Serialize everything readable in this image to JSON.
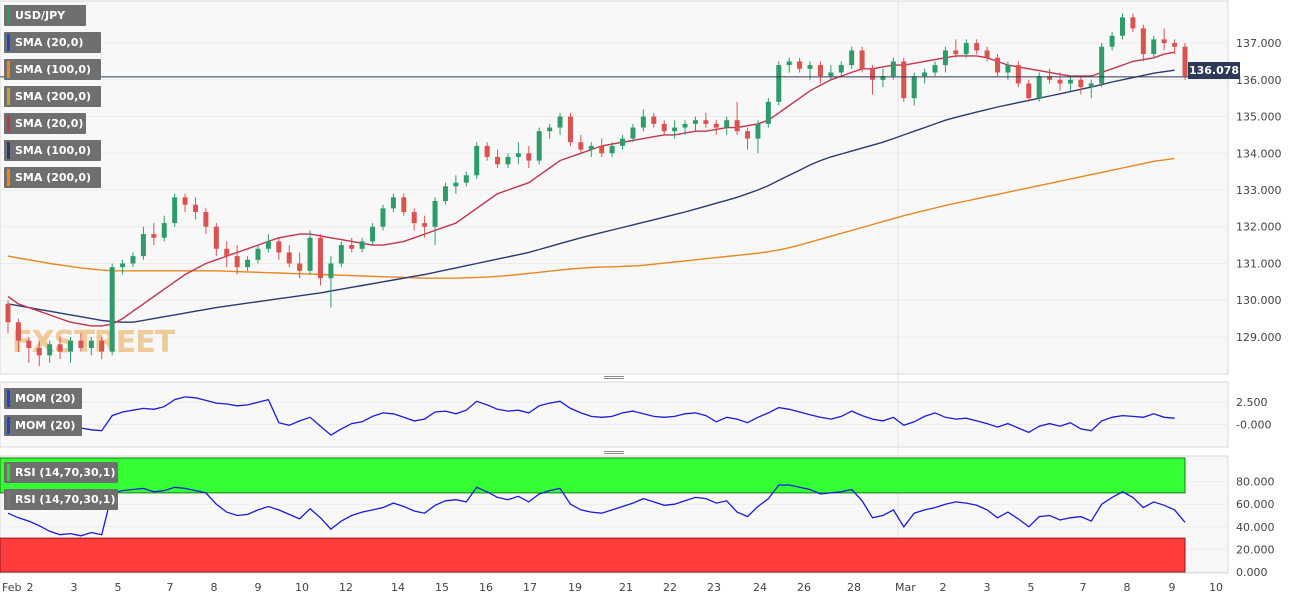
{
  "instrument": "USD/JPY",
  "current_price": "136.078",
  "watermark": "FXSTREET",
  "colors": {
    "up": "#2e9c6a",
    "down": "#d9534f",
    "sma20": "#c2334d",
    "sma100": "#2c3a6e",
    "sma200": "#e8871e",
    "mom": "#1a1adb",
    "rsi": "#1a1adb",
    "rsi_overbought_zone": "#33ff33",
    "rsi_oversold_zone": "#ff3b3b",
    "price_line": "#2c3a57"
  },
  "indicator_labels": [
    {
      "text": "SMA (20,0)",
      "color": "#2244cc"
    },
    {
      "text": "SMA (100,0)",
      "color": "#e8871e"
    },
    {
      "text": "SMA (200,0)",
      "color": "#c2a13a"
    },
    {
      "text": "SMA (20,0)",
      "color": "#c2334d"
    },
    {
      "text": "SMA (100,0)",
      "color": "#2c3a6e"
    },
    {
      "text": "SMA (200,0)",
      "color": "#e8871e"
    }
  ],
  "mom_labels": [
    {
      "text": "MOM (20)",
      "color": "#2244cc"
    },
    {
      "text": "MOM (20)",
      "color": "#2244cc"
    }
  ],
  "rsi_labels": [
    {
      "text": "RSI (14,70,30,1)",
      "color": "#2d2"
    },
    {
      "text": "RSI (14,70,30,1)",
      "color": "#777"
    }
  ],
  "chart_data": {
    "type": "candlestick",
    "x_ticks": [
      "Feb",
      "2",
      "3",
      "5",
      "7",
      "8",
      "9",
      "10",
      "12",
      "14",
      "15",
      "16",
      "17",
      "19",
      "21",
      "22",
      "23",
      "24",
      "26",
      "28",
      "Mar",
      "2",
      "3",
      "5",
      "7",
      "8",
      "9",
      "10"
    ],
    "price_axis": {
      "ticks": [
        129.0,
        130.0,
        131.0,
        132.0,
        133.0,
        134.0,
        135.0,
        136.0,
        137.0
      ],
      "ylim": [
        128.1,
        137.9
      ]
    },
    "mom_axis": {
      "ticks": [
        2.5,
        0.0
      ],
      "tick_labels": [
        "2.500",
        "-0.000"
      ],
      "ylim": [
        -2.2,
        4.1
      ]
    },
    "rsi_axis": {
      "ticks": [
        0,
        20,
        40,
        60,
        80
      ],
      "tick_labels": [
        "0.000",
        "20.000",
        "40.000",
        "60.000",
        "80.000"
      ],
      "ylim": [
        0,
        100
      ],
      "overbought": 70,
      "oversold": 30
    },
    "ohlc": [
      [
        129.9,
        130.0,
        129.1,
        129.4
      ],
      [
        129.4,
        129.5,
        128.6,
        128.9
      ],
      [
        128.9,
        129.0,
        128.3,
        128.7
      ],
      [
        128.7,
        128.9,
        128.2,
        128.5
      ],
      [
        128.5,
        128.9,
        128.3,
        128.8
      ],
      [
        128.8,
        129.0,
        128.4,
        128.6
      ],
      [
        128.6,
        129.0,
        128.3,
        128.9
      ],
      [
        128.9,
        129.1,
        128.6,
        128.7
      ],
      [
        128.7,
        129.0,
        128.5,
        128.9
      ],
      [
        128.9,
        129.0,
        128.4,
        128.6
      ],
      [
        128.6,
        131.0,
        128.5,
        130.9
      ],
      [
        130.9,
        131.1,
        130.7,
        131.0
      ],
      [
        131.0,
        131.3,
        130.9,
        131.2
      ],
      [
        131.2,
        132.0,
        131.1,
        131.8
      ],
      [
        131.8,
        132.1,
        131.5,
        131.7
      ],
      [
        131.7,
        132.3,
        131.6,
        132.1
      ],
      [
        132.1,
        132.9,
        132.0,
        132.8
      ],
      [
        132.8,
        132.9,
        132.4,
        132.6
      ],
      [
        132.6,
        132.8,
        132.2,
        132.4
      ],
      [
        132.4,
        132.5,
        131.8,
        132.0
      ],
      [
        132.0,
        132.1,
        131.2,
        131.4
      ],
      [
        131.4,
        131.6,
        130.9,
        131.2
      ],
      [
        131.2,
        131.5,
        130.7,
        130.9
      ],
      [
        130.9,
        131.2,
        130.8,
        131.1
      ],
      [
        131.1,
        131.5,
        131.0,
        131.4
      ],
      [
        131.4,
        131.8,
        131.3,
        131.6
      ],
      [
        131.6,
        131.7,
        131.1,
        131.3
      ],
      [
        131.3,
        131.5,
        130.9,
        131.0
      ],
      [
        131.0,
        131.3,
        130.6,
        130.8
      ],
      [
        130.8,
        131.9,
        130.7,
        131.7
      ],
      [
        131.7,
        131.8,
        130.4,
        130.6
      ],
      [
        130.6,
        131.2,
        129.8,
        131.0
      ],
      [
        131.0,
        131.6,
        130.9,
        131.5
      ],
      [
        131.5,
        131.7,
        131.3,
        131.4
      ],
      [
        131.4,
        131.7,
        131.3,
        131.6
      ],
      [
        131.6,
        132.1,
        131.5,
        132.0
      ],
      [
        132.0,
        132.6,
        131.9,
        132.5
      ],
      [
        132.5,
        132.9,
        132.4,
        132.8
      ],
      [
        132.8,
        132.9,
        132.3,
        132.4
      ],
      [
        132.4,
        132.5,
        131.9,
        132.1
      ],
      [
        132.1,
        132.3,
        131.7,
        132.0
      ],
      [
        132.0,
        132.8,
        131.5,
        132.7
      ],
      [
        132.7,
        133.2,
        132.6,
        133.1
      ],
      [
        133.1,
        133.4,
        132.9,
        133.2
      ],
      [
        133.2,
        133.5,
        133.1,
        133.4
      ],
      [
        133.4,
        134.3,
        133.3,
        134.2
      ],
      [
        134.2,
        134.3,
        133.8,
        133.9
      ],
      [
        133.9,
        134.1,
        133.6,
        133.7
      ],
      [
        133.7,
        134.0,
        133.6,
        133.9
      ],
      [
        133.9,
        134.3,
        133.7,
        134.0
      ],
      [
        134.0,
        134.2,
        133.6,
        133.8
      ],
      [
        133.8,
        134.7,
        133.7,
        134.6
      ],
      [
        134.6,
        134.8,
        134.4,
        134.7
      ],
      [
        134.7,
        135.1,
        134.5,
        135.0
      ],
      [
        135.0,
        135.1,
        134.2,
        134.3
      ],
      [
        134.3,
        134.5,
        134.0,
        134.1
      ],
      [
        134.1,
        134.3,
        133.9,
        134.2
      ],
      [
        134.2,
        134.4,
        133.9,
        134.0
      ],
      [
        134.0,
        134.3,
        133.9,
        134.2
      ],
      [
        134.2,
        134.5,
        134.1,
        134.4
      ],
      [
        134.4,
        134.8,
        134.3,
        134.7
      ],
      [
        134.7,
        135.2,
        134.6,
        135.0
      ],
      [
        135.0,
        135.1,
        134.7,
        134.8
      ],
      [
        134.8,
        134.9,
        134.5,
        134.6
      ],
      [
        134.6,
        134.9,
        134.4,
        134.7
      ],
      [
        134.7,
        134.9,
        134.5,
        134.8
      ],
      [
        134.8,
        135.0,
        134.6,
        134.9
      ],
      [
        134.9,
        135.1,
        134.7,
        134.8
      ],
      [
        134.8,
        134.9,
        134.5,
        134.7
      ],
      [
        134.7,
        135.0,
        134.5,
        134.9
      ],
      [
        134.9,
        135.4,
        134.5,
        134.6
      ],
      [
        134.6,
        134.7,
        134.1,
        134.4
      ],
      [
        134.4,
        134.9,
        134.0,
        134.8
      ],
      [
        134.8,
        135.5,
        134.7,
        135.4
      ],
      [
        135.4,
        136.5,
        135.3,
        136.4
      ],
      [
        136.4,
        136.6,
        136.2,
        136.5
      ],
      [
        136.5,
        136.6,
        136.2,
        136.3
      ],
      [
        136.3,
        136.5,
        136.0,
        136.4
      ],
      [
        136.4,
        136.5,
        135.9,
        136.1
      ],
      [
        136.1,
        136.4,
        136.0,
        136.2
      ],
      [
        136.2,
        136.5,
        136.1,
        136.4
      ],
      [
        136.4,
        136.9,
        136.3,
        136.8
      ],
      [
        136.8,
        136.9,
        136.2,
        136.3
      ],
      [
        136.3,
        136.4,
        135.6,
        136.0
      ],
      [
        136.0,
        136.3,
        135.8,
        136.1
      ],
      [
        136.1,
        136.6,
        136.0,
        136.5
      ],
      [
        136.5,
        136.6,
        135.4,
        135.5
      ],
      [
        135.5,
        136.2,
        135.3,
        136.1
      ],
      [
        136.1,
        136.3,
        135.9,
        136.2
      ],
      [
        136.2,
        136.5,
        136.1,
        136.4
      ],
      [
        136.4,
        136.9,
        136.2,
        136.8
      ],
      [
        136.8,
        137.1,
        136.6,
        136.7
      ],
      [
        136.7,
        137.1,
        136.6,
        137.0
      ],
      [
        137.0,
        137.1,
        136.7,
        136.8
      ],
      [
        136.8,
        136.9,
        136.5,
        136.6
      ],
      [
        136.6,
        136.7,
        136.1,
        136.2
      ],
      [
        136.2,
        136.5,
        136.0,
        136.4
      ],
      [
        136.4,
        136.5,
        135.8,
        135.9
      ],
      [
        135.9,
        136.0,
        135.4,
        135.5
      ],
      [
        135.5,
        136.2,
        135.4,
        136.1
      ],
      [
        136.1,
        136.3,
        135.9,
        136.0
      ],
      [
        136.0,
        136.2,
        135.7,
        135.9
      ],
      [
        135.9,
        136.1,
        135.7,
        136.0
      ],
      [
        136.0,
        136.1,
        135.6,
        135.8
      ],
      [
        135.8,
        136.0,
        135.5,
        135.9
      ],
      [
        135.9,
        137.0,
        135.8,
        136.9
      ],
      [
        136.9,
        137.3,
        136.8,
        137.2
      ],
      [
        137.2,
        137.8,
        137.1,
        137.7
      ],
      [
        137.7,
        137.8,
        137.3,
        137.4
      ],
      [
        137.4,
        137.5,
        136.5,
        136.7
      ],
      [
        136.7,
        137.2,
        136.6,
        137.1
      ],
      [
        137.1,
        137.4,
        136.8,
        137.0
      ],
      [
        137.0,
        137.1,
        136.7,
        136.9
      ],
      [
        136.9,
        137.0,
        136.0,
        136.1
      ]
    ],
    "sma20": [
      130.1,
      129.9,
      129.8,
      129.7,
      129.6,
      129.5,
      129.4,
      129.35,
      129.3,
      129.3,
      129.35,
      129.5,
      129.7,
      129.9,
      130.1,
      130.3,
      130.5,
      130.7,
      130.85,
      131.0,
      131.1,
      131.2,
      131.3,
      131.4,
      131.5,
      131.6,
      131.7,
      131.75,
      131.8,
      131.8,
      131.75,
      131.7,
      131.65,
      131.6,
      131.55,
      131.5,
      131.5,
      131.55,
      131.6,
      131.7,
      131.8,
      131.9,
      132.0,
      132.1,
      132.3,
      132.5,
      132.7,
      132.9,
      133.0,
      133.1,
      133.2,
      133.4,
      133.6,
      133.8,
      133.9,
      134.0,
      134.1,
      134.2,
      134.25,
      134.3,
      134.35,
      134.4,
      134.45,
      134.5,
      134.5,
      134.55,
      134.6,
      134.6,
      134.65,
      134.7,
      134.7,
      134.75,
      134.8,
      134.9,
      135.1,
      135.3,
      135.5,
      135.7,
      135.85,
      136.0,
      136.1,
      136.2,
      136.3,
      136.3,
      136.35,
      136.4,
      136.4,
      136.45,
      136.5,
      136.55,
      136.6,
      136.65,
      136.65,
      136.65,
      136.6,
      136.5,
      136.4,
      136.35,
      136.3,
      136.25,
      136.2,
      136.15,
      136.1,
      136.1,
      136.1,
      136.2,
      136.3,
      136.4,
      136.5,
      136.55,
      136.6,
      136.7,
      136.75
    ],
    "sma100": [
      129.9,
      129.85,
      129.8,
      129.75,
      129.7,
      129.65,
      129.6,
      129.55,
      129.5,
      129.45,
      129.42,
      129.4,
      129.4,
      129.45,
      129.5,
      129.55,
      129.6,
      129.65,
      129.7,
      129.75,
      129.8,
      129.84,
      129.88,
      129.92,
      129.96,
      130.0,
      130.04,
      130.08,
      130.12,
      130.16,
      130.2,
      130.25,
      130.3,
      130.35,
      130.4,
      130.45,
      130.5,
      130.55,
      130.6,
      130.65,
      130.7,
      130.76,
      130.82,
      130.88,
      130.94,
      131.0,
      131.06,
      131.12,
      131.18,
      131.24,
      131.3,
      131.38,
      131.46,
      131.54,
      131.62,
      131.7,
      131.77,
      131.84,
      131.91,
      131.98,
      132.05,
      132.12,
      132.19,
      132.26,
      132.33,
      132.4,
      132.48,
      132.56,
      132.64,
      132.72,
      132.8,
      132.9,
      133.0,
      133.12,
      133.26,
      133.4,
      133.54,
      133.68,
      133.8,
      133.9,
      133.98,
      134.06,
      134.14,
      134.22,
      134.3,
      134.4,
      134.5,
      134.6,
      134.7,
      134.8,
      134.9,
      134.98,
      135.05,
      135.12,
      135.19,
      135.26,
      135.32,
      135.38,
      135.44,
      135.5,
      135.56,
      135.62,
      135.68,
      135.74,
      135.8,
      135.87,
      135.94,
      136.0,
      136.06,
      136.12,
      136.18,
      136.22,
      136.26
    ],
    "sma200": [
      131.2,
      131.15,
      131.1,
      131.05,
      131.0,
      130.96,
      130.92,
      130.88,
      130.85,
      130.82,
      130.8,
      130.8,
      130.8,
      130.8,
      130.8,
      130.8,
      130.8,
      130.8,
      130.8,
      130.8,
      130.8,
      130.79,
      130.78,
      130.77,
      130.76,
      130.75,
      130.74,
      130.73,
      130.72,
      130.71,
      130.7,
      130.69,
      130.68,
      130.67,
      130.66,
      130.65,
      130.64,
      130.63,
      130.62,
      130.61,
      130.6,
      130.6,
      130.6,
      130.6,
      130.61,
      130.62,
      130.63,
      130.65,
      130.67,
      130.7,
      130.73,
      130.76,
      130.79,
      130.82,
      130.85,
      130.87,
      130.89,
      130.9,
      130.91,
      130.92,
      130.93,
      130.95,
      130.98,
      131.01,
      131.04,
      131.07,
      131.1,
      131.13,
      131.16,
      131.19,
      131.22,
      131.25,
      131.28,
      131.32,
      131.37,
      131.43,
      131.5,
      131.58,
      131.66,
      131.74,
      131.82,
      131.9,
      131.98,
      132.06,
      132.14,
      132.22,
      132.3,
      132.37,
      132.44,
      132.51,
      132.58,
      132.64,
      132.7,
      132.76,
      132.82,
      132.88,
      132.94,
      133.0,
      133.06,
      133.12,
      133.18,
      133.24,
      133.3,
      133.36,
      133.42,
      133.48,
      133.54,
      133.6,
      133.66,
      133.72,
      133.78,
      133.82,
      133.86
    ],
    "mom": [
      0.0,
      -0.3,
      -0.5,
      -0.4,
      -0.6,
      -0.3,
      -0.5,
      -0.4,
      -0.6,
      -0.7,
      1.0,
      1.4,
      1.6,
      1.8,
      1.7,
      2.0,
      2.8,
      3.1,
      3.0,
      2.7,
      2.4,
      2.3,
      2.1,
      2.2,
      2.5,
      2.8,
      0.2,
      -0.1,
      0.4,
      0.8,
      -0.2,
      -1.2,
      -0.5,
      0.1,
      0.3,
      0.9,
      1.3,
      1.2,
      0.8,
      0.4,
      0.6,
      1.4,
      1.5,
      1.2,
      1.6,
      2.6,
      2.2,
      1.7,
      1.5,
      1.6,
      1.3,
      2.1,
      2.4,
      2.6,
      1.8,
      1.3,
      0.9,
      0.8,
      0.9,
      1.3,
      1.5,
      1.2,
      0.9,
      0.8,
      0.9,
      1.2,
      1.3,
      1.0,
      0.3,
      0.8,
      0.6,
      0.2,
      0.8,
      1.3,
      1.9,
      1.7,
      1.4,
      1.1,
      0.8,
      0.6,
      0.9,
      1.5,
      1.0,
      0.6,
      0.4,
      0.8,
      -0.1,
      0.3,
      0.9,
      1.3,
      0.8,
      0.6,
      0.7,
      0.4,
      0.1,
      -0.3,
      0.1,
      -0.4,
      -0.9,
      -0.2,
      0.1,
      -0.2,
      0.2,
      -0.5,
      -0.7,
      0.4,
      0.8,
      1.0,
      0.9,
      0.8,
      1.2,
      0.8,
      0.7
    ],
    "rsi": [
      52,
      48,
      45,
      41,
      36,
      33,
      34,
      32,
      35,
      33,
      70,
      72,
      73,
      74,
      71,
      72,
      75,
      74,
      72,
      70,
      60,
      53,
      50,
      51,
      55,
      58,
      55,
      51,
      47,
      56,
      48,
      38,
      45,
      50,
      53,
      55,
      57,
      61,
      58,
      54,
      52,
      59,
      63,
      64,
      62,
      75,
      71,
      66,
      64,
      67,
      62,
      69,
      72,
      74,
      60,
      55,
      53,
      52,
      55,
      58,
      61,
      65,
      62,
      59,
      60,
      63,
      66,
      65,
      61,
      63,
      53,
      49,
      58,
      65,
      77,
      77,
      75,
      73,
      69,
      70,
      71,
      73,
      63,
      48,
      50,
      55,
      40,
      52,
      55,
      57,
      60,
      62,
      61,
      59,
      55,
      48,
      53,
      47,
      40,
      49,
      50,
      46,
      48,
      49,
      45,
      60,
      66,
      71,
      66,
      57,
      62,
      59,
      55,
      44
    ]
  }
}
